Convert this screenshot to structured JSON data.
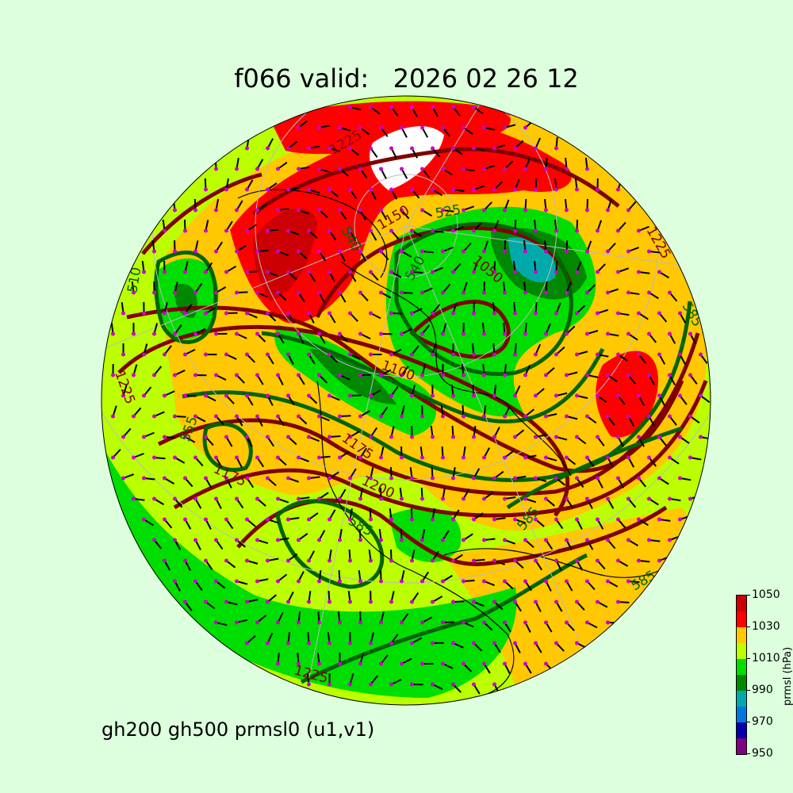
{
  "title": "f066 valid:   2026 02 26 12",
  "subtitle": "gh200 gh500 prmsl0 (u1,v1)",
  "colorbar": {
    "label": "prmsl (hPa)",
    "ticks": [
      "950",
      "970",
      "990",
      "1010",
      "1030",
      "1050"
    ],
    "levels": [
      950,
      960,
      970,
      980,
      990,
      1000,
      1010,
      1020,
      1030,
      1040,
      1050
    ],
    "colors": [
      "#7f007f",
      "#0000aa",
      "#0077dd",
      "#00aaaa",
      "#008800",
      "#00dd00",
      "#bbff00",
      "#ffc800",
      "#ff0000",
      "#cc0000"
    ]
  },
  "style": {
    "background": "#ddffdd",
    "gh200_contour_color": "#800000",
    "gh500_contour_color": "#006400",
    "wind_marker_color": "#cc00cc"
  },
  "contour_labels": {
    "gh200": [
      "1225",
      "1150",
      "1100",
      "1175",
      "1200",
      "1175",
      "1225",
      "1225",
      "1225",
      "1050"
    ],
    "gh500": [
      "525",
      "540",
      "555",
      "585",
      "585",
      "585",
      "540",
      "585",
      "510"
    ]
  }
}
